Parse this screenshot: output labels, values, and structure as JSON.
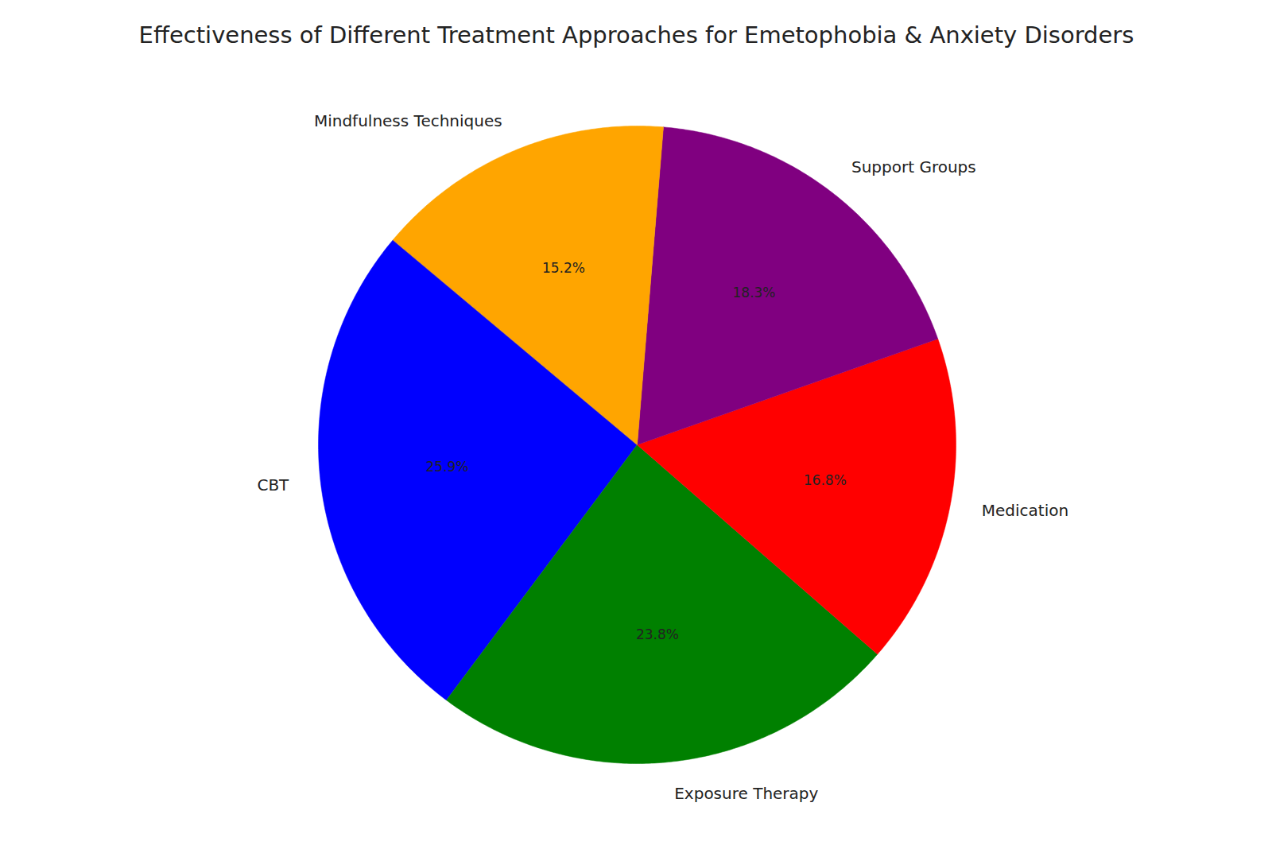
{
  "chart_data": {
    "type": "pie",
    "title": "Effectiveness of Different Treatment Approaches for Emetophobia & Anxiety Disorders",
    "categories": [
      "CBT",
      "Exposure Therapy",
      "Medication",
      "Support Groups",
      "Mindfulness Techniques"
    ],
    "values": [
      25.9,
      23.8,
      16.8,
      18.3,
      15.2
    ],
    "value_labels": [
      "25.9%",
      "23.8%",
      "16.8%",
      "18.3%",
      "15.2%"
    ],
    "colors": [
      "blue",
      "green",
      "red",
      "purple",
      "orange"
    ],
    "data_labels": true
  }
}
